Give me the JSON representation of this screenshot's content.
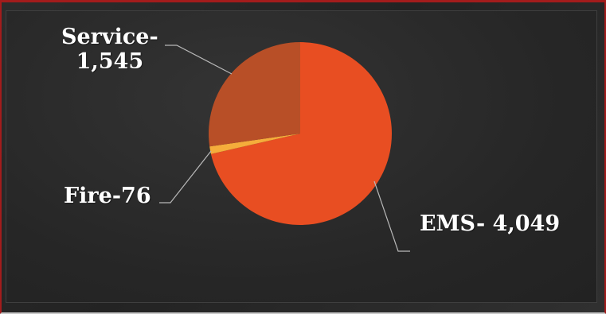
{
  "chart_data": {
    "type": "pie",
    "title": "",
    "categories": [
      "EMS",
      "Fire",
      "Service"
    ],
    "values": [
      4049,
      76,
      1545
    ],
    "labels": {
      "ems": "EMS- 4,049",
      "fire": "Fire-76",
      "service_line1": "Service-",
      "service_line2": "1,545"
    },
    "colors": [
      "#e84e22",
      "#f5ad3b",
      "#b84f27"
    ],
    "start_angle_deg": 0,
    "direction": "clockwise",
    "legend": "none"
  }
}
